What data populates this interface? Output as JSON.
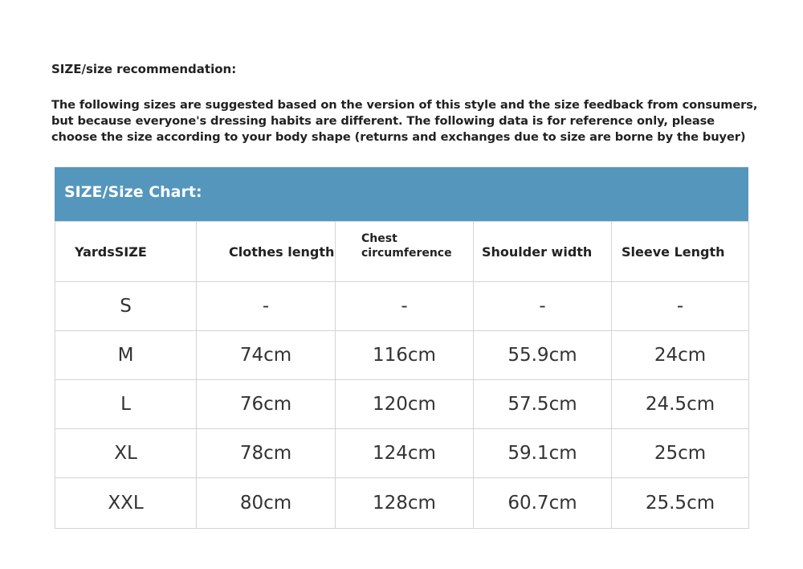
{
  "title": "SIZE/size recommendation:",
  "intro": "The following sizes are suggested based on the version of this style and the size feedback from consumers, but because everyone's dressing habits are different. The following data is for reference only, please choose the size according to your body shape (returns and exchanges due to size are borne by the buyer)",
  "header_color": "#5596bd",
  "chart_title": "SIZE/Size Chart:",
  "columns": [
    "YardsSIZE",
    "Clothes length",
    "Chest circumference",
    "Shoulder width",
    "Sleeve Length"
  ],
  "rows": [
    [
      "S",
      "-",
      "-",
      "-",
      "-"
    ],
    [
      "M",
      "74cm",
      "116cm",
      "55.9cm",
      "24cm"
    ],
    [
      "L",
      "76cm",
      "120cm",
      "57.5cm",
      "24.5cm"
    ],
    [
      "XL",
      "78cm",
      "124cm",
      "59.1cm",
      "25cm"
    ],
    [
      "XXL",
      "80cm",
      "128cm",
      "60.7cm",
      "25.5cm"
    ]
  ]
}
